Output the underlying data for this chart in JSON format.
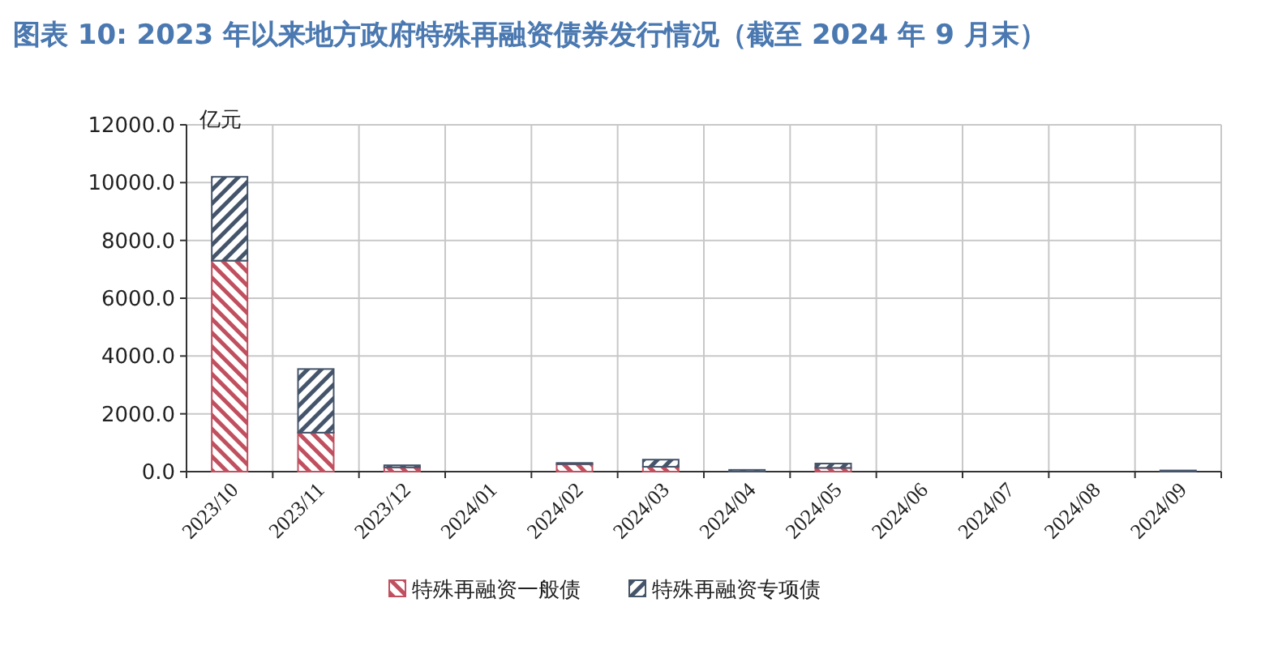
{
  "chart_data": {
    "type": "bar",
    "stacked": true,
    "title": "图表 10: 2023 年以来地方政府特殊再融资债券发行情况（截至 2024 年 9 月末）",
    "ylabel": "亿元",
    "categories": [
      "2023/10",
      "2023/11",
      "2023/12",
      "2024/01",
      "2024/02",
      "2024/03",
      "2024/04",
      "2024/05",
      "2024/06",
      "2024/07",
      "2024/08",
      "2024/09"
    ],
    "series": [
      {
        "name": "特殊再融资一般债",
        "color": "#c0505f",
        "values": [
          7300,
          1350,
          150,
          0,
          260,
          170,
          0,
          130,
          0,
          0,
          0,
          0
        ]
      },
      {
        "name": "特殊再融资专项债",
        "color": "#44546a",
        "values": [
          2900,
          2200,
          70,
          0,
          40,
          245,
          60,
          150,
          0,
          0,
          0,
          40
        ]
      }
    ],
    "ylim": [
      0,
      12000
    ],
    "yticks": [
      {
        "value": 0,
        "label": "0.0"
      },
      {
        "value": 2000,
        "label": "2000.0"
      },
      {
        "value": 4000,
        "label": "4000.0"
      },
      {
        "value": 6000,
        "label": "6000.0"
      },
      {
        "value": 8000,
        "label": "8000.0"
      },
      {
        "value": 10000,
        "label": "10000.0"
      },
      {
        "value": 12000,
        "label": "12000.0"
      }
    ],
    "grid": true,
    "legend": "bottom"
  }
}
